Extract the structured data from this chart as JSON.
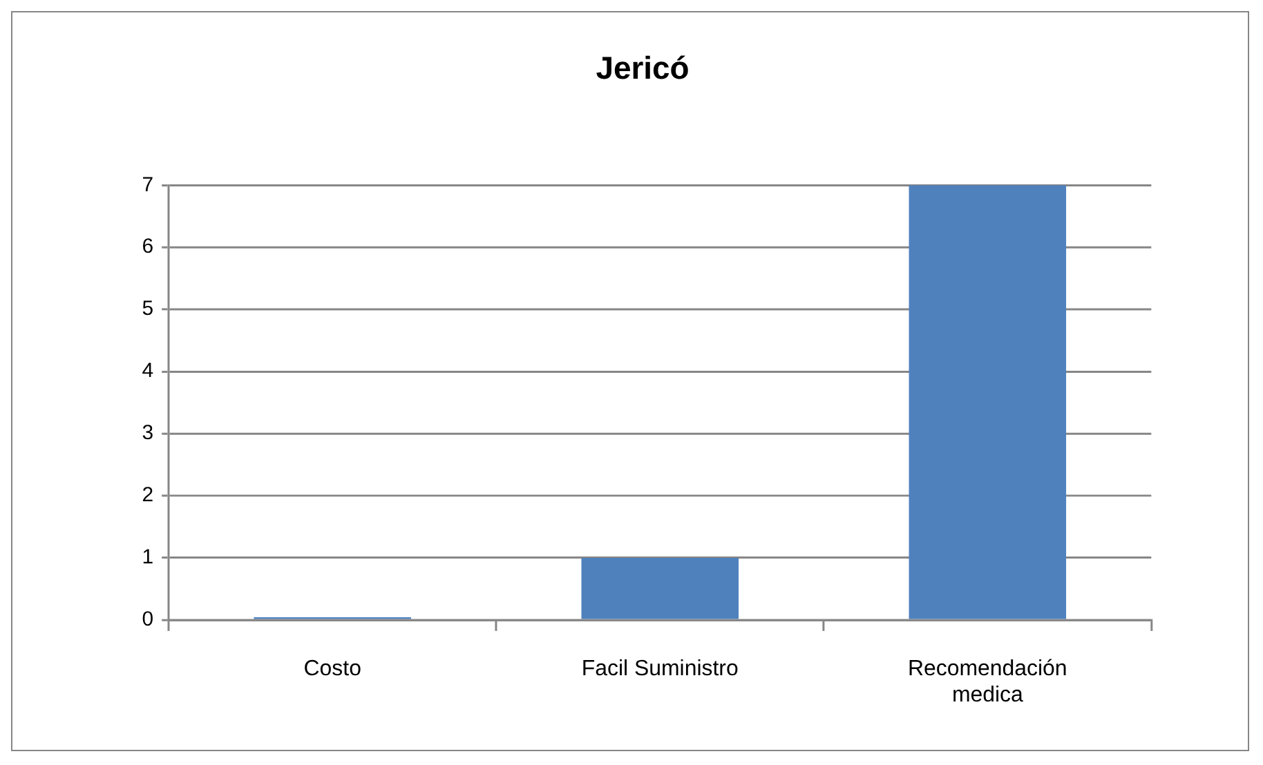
{
  "chart_data": {
    "type": "bar",
    "title": "Jericó",
    "categories": [
      "Costo",
      "Facil Suministro",
      "Recomendación medica"
    ],
    "values": [
      0,
      1,
      7
    ],
    "color": "#4f81bd",
    "ylim": [
      0,
      7
    ],
    "yticks": [
      0,
      1,
      2,
      3,
      4,
      5,
      6,
      7
    ],
    "grid": "y",
    "legend": false
  }
}
